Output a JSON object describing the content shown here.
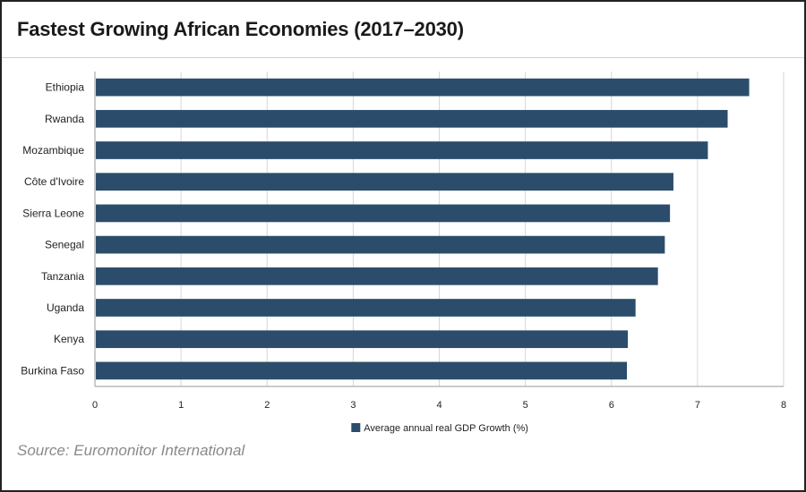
{
  "title": "Fastest Growing African Economies (2017–2030)",
  "source": "Source: Euromonitor International",
  "colors": {
    "bar": "#2b4d6b",
    "grid": "#d6d6d6",
    "axis": "#9a9a9a"
  },
  "chart_data": {
    "type": "bar",
    "orientation": "horizontal",
    "categories": [
      "Ethiopia",
      "Rwanda",
      "Mozambique",
      "Côte d'Ivoire",
      "Sierra Leone",
      "Senegal",
      "Tanzania",
      "Uganda",
      "Kenya",
      "Burkina Faso"
    ],
    "series": [
      {
        "name": "Average annual real GDP Growth (%)",
        "values": [
          7.6,
          7.35,
          7.12,
          6.72,
          6.68,
          6.62,
          6.54,
          6.28,
          6.19,
          6.18
        ]
      }
    ],
    "xticks": [
      "0",
      "1",
      "2",
      "3",
      "4",
      "5",
      "6",
      "7",
      "8"
    ],
    "xlim": [
      0,
      8
    ],
    "grid": true,
    "legend": "bottom-center"
  }
}
